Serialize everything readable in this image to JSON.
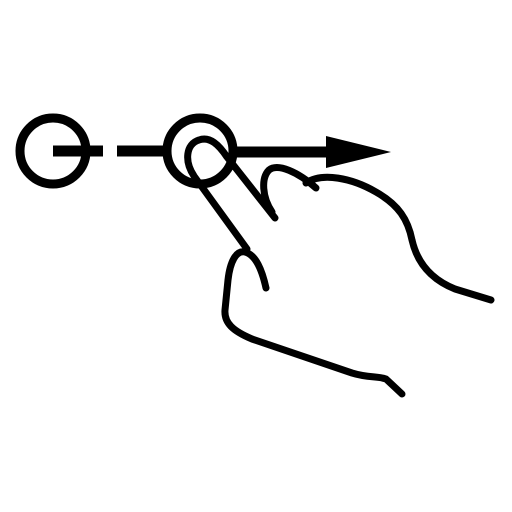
{
  "icon": {
    "name": "swipe-right-gesture-icon",
    "stroke_color": "#000000",
    "background_color": "#ffffff"
  }
}
